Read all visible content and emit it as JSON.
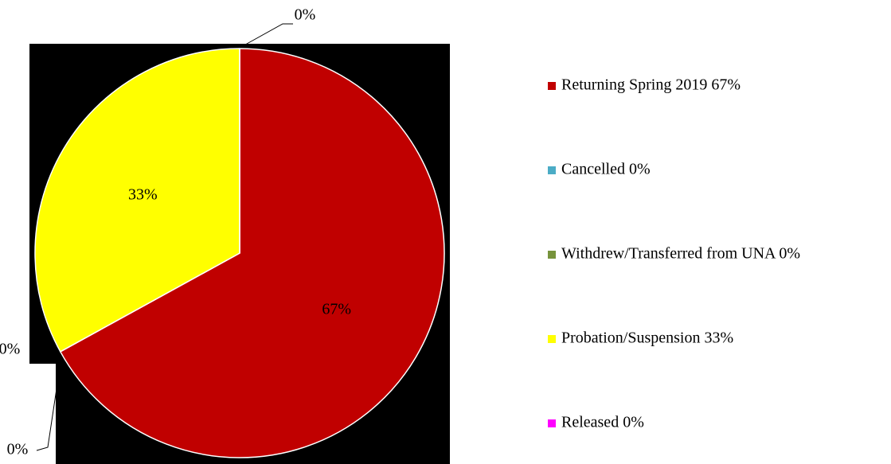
{
  "chart_data": {
    "type": "pie",
    "categories": [
      "Returning Spring 2019 67%",
      "Cancelled 0%",
      "Withdrew/Transferred from UNA 0%",
      "Probation/Suspension 33%",
      "Released 0%"
    ],
    "values": [
      67,
      0,
      0,
      33,
      0
    ],
    "value_labels": [
      "67%",
      "0%",
      "0%",
      "33%",
      "0%"
    ],
    "colors": [
      "#c00000",
      "#4bacc6",
      "#77933c",
      "#ffff00",
      "#ff00ff"
    ],
    "legend": "right"
  }
}
